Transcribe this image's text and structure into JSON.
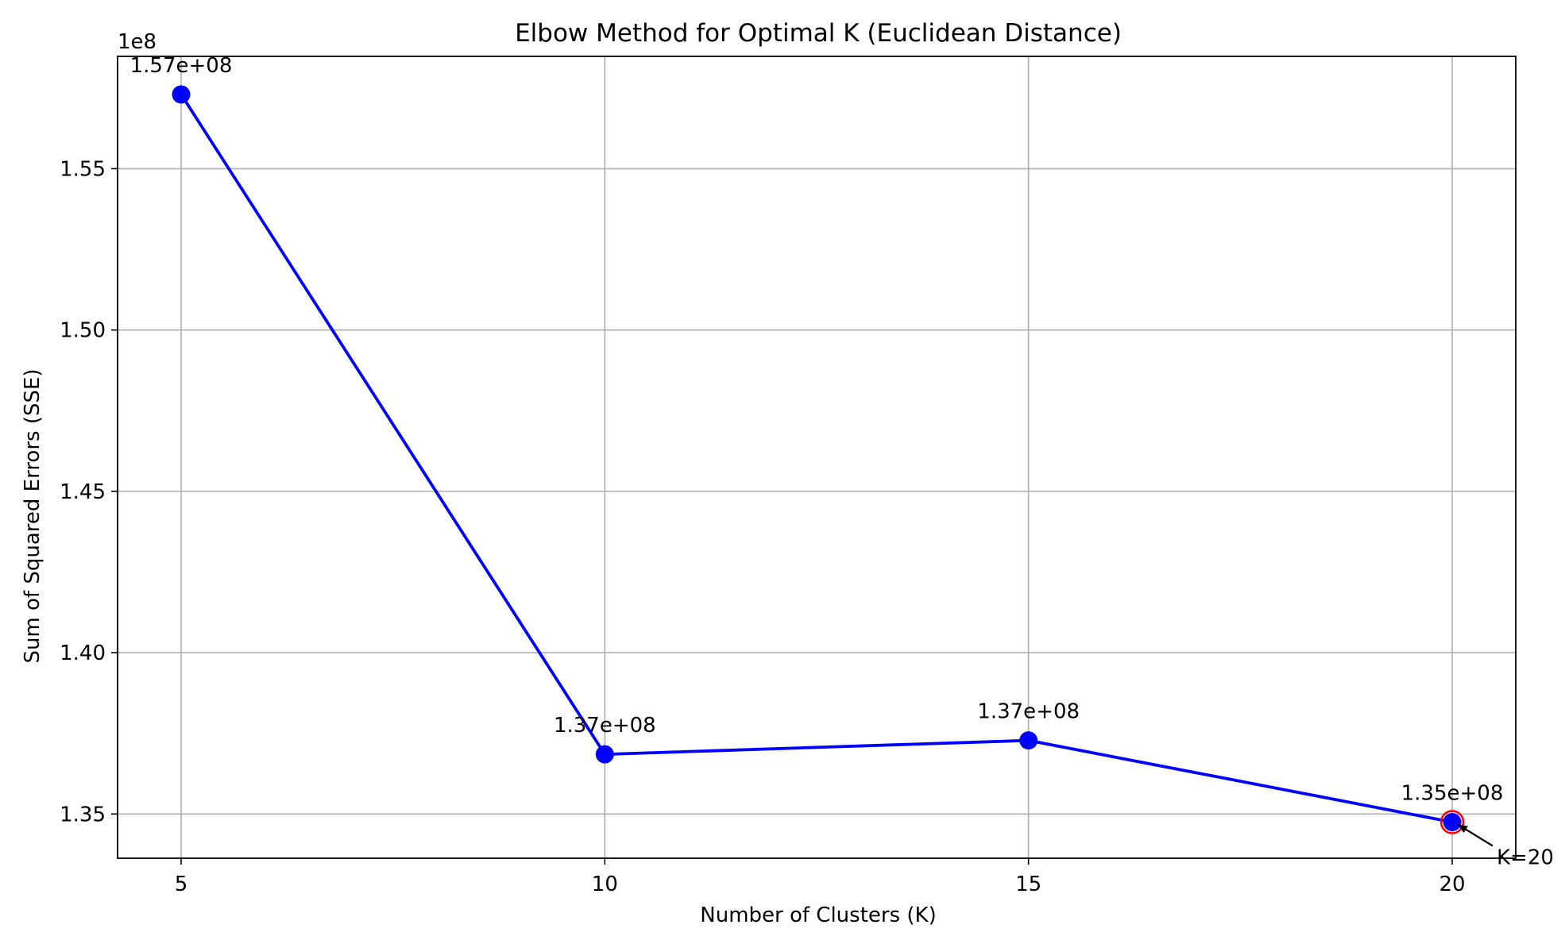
{
  "chart_data": {
    "type": "line",
    "title": "Elbow Method for Optimal K (Euclidean Distance)",
    "xlabel": "Number of Clusters (K)",
    "ylabel": "Sum of Squared Errors (SSE)",
    "y_offset_label": "1e8",
    "x": [
      5,
      10,
      15,
      20
    ],
    "y": [
      157300000,
      136850000,
      137280000,
      134750000
    ],
    "point_labels": [
      "1.57e+08",
      "1.37e+08",
      "1.37e+08",
      "1.35e+08"
    ],
    "x_ticks": [
      5,
      10,
      15,
      20
    ],
    "x_tick_labels": [
      "5",
      "10",
      "15",
      "20"
    ],
    "y_ticks": [
      1.35,
      1.4,
      1.45,
      1.5,
      1.55
    ],
    "y_tick_labels": [
      "1.35",
      "1.40",
      "1.45",
      "1.50",
      "1.55"
    ],
    "xlim": [
      4.25,
      20.75
    ],
    "ylim": [
      1.3363,
      1.5848
    ],
    "grid": true,
    "series": [
      {
        "color": "#0000ff",
        "marker": "circle"
      }
    ],
    "highlight": {
      "x": 20,
      "y": 134750000,
      "edge_color": "#ff0000"
    },
    "annotation": {
      "text": "K=20",
      "x": 20,
      "y": 134750000,
      "arrow_color": "#000000"
    },
    "colors": {
      "line": "#0000ff",
      "grid": "#b0b0b0",
      "highlight_edge": "#ff0000",
      "axes": "#000000"
    }
  }
}
